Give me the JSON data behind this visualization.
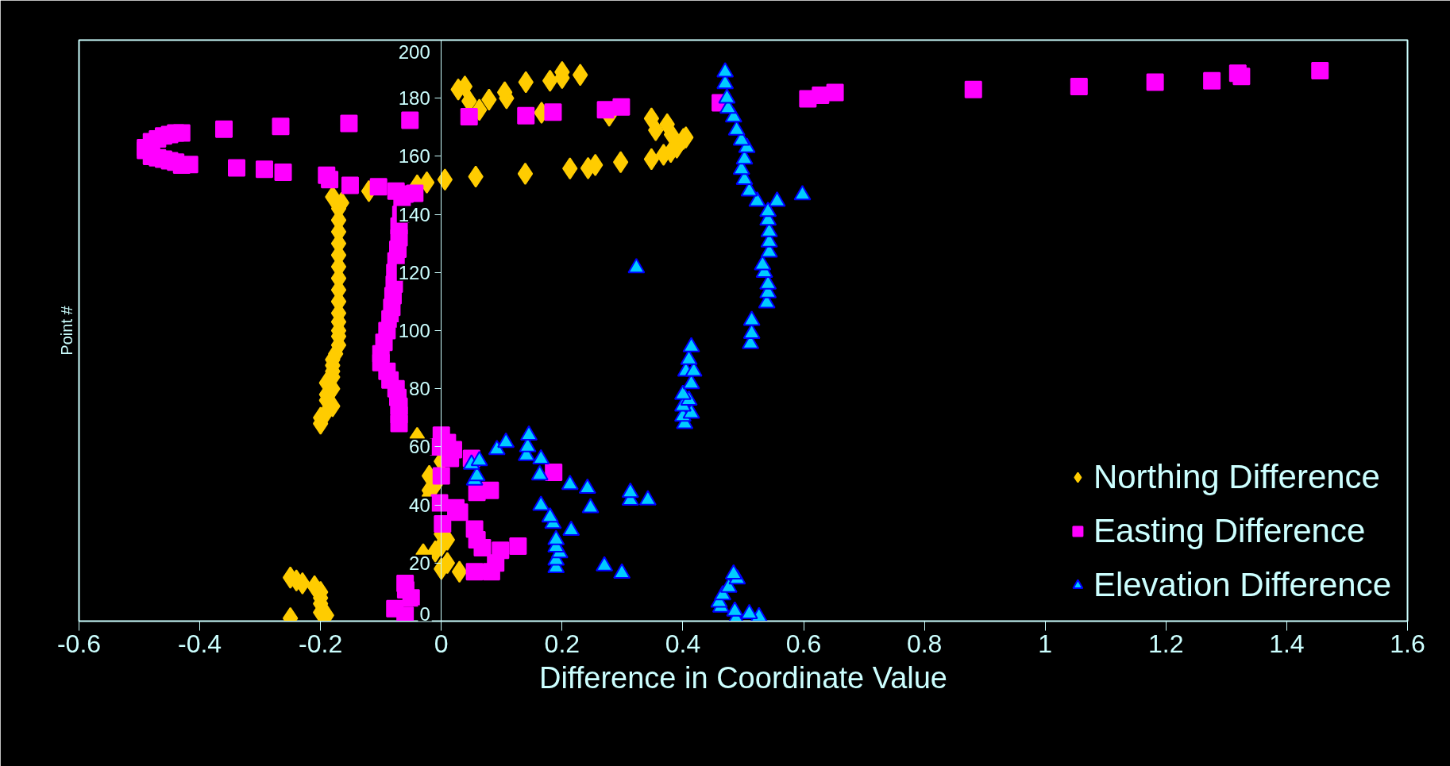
{
  "chart_data": {
    "type": "scatter",
    "xlabel": "Difference in Coordinate Value",
    "ylabel": "Point #",
    "xlim": [
      -0.6,
      1.6
    ],
    "ylim": [
      0,
      200
    ],
    "xticks": [
      -0.6,
      -0.4,
      -0.2,
      0,
      0.2,
      0.4,
      0.6,
      0.8,
      1,
      1.2,
      1.4,
      1.6
    ],
    "yticks": [
      0,
      20,
      40,
      60,
      80,
      100,
      120,
      140,
      160,
      180,
      200
    ],
    "grid": false,
    "legend": "bottom right",
    "series": [
      {
        "name": "Northing Difference",
        "color": "#ffcc00",
        "marker": "diamond",
        "x": [
          -0.25,
          -0.25,
          -0.24,
          -0.23,
          -0.21,
          -0.2,
          -0.2,
          -0.2,
          -0.2,
          -0.19,
          0.03,
          0.0,
          0.01,
          -0.03,
          -0.01,
          0.0,
          0.01,
          0.0,
          -0.02,
          -0.02,
          -0.01,
          -0.02,
          0.0,
          -0.04,
          -0.2,
          -0.2,
          -0.19,
          -0.18,
          -0.19,
          -0.19,
          -0.18,
          -0.19,
          -0.18,
          -0.18,
          -0.18,
          -0.18,
          -0.175,
          -0.17,
          -0.17,
          -0.17,
          -0.17,
          -0.17,
          -0.17,
          -0.17,
          -0.17,
          -0.17,
          -0.17,
          -0.17,
          -0.17,
          -0.17,
          -0.17,
          -0.165,
          -0.18,
          -0.12,
          -0.04,
          -0.024,
          0.006,
          0.057,
          0.139,
          0.213,
          0.243,
          0.255,
          0.297,
          0.348,
          0.368,
          0.38,
          0.39,
          0.401,
          0.405,
          0.381,
          0.355,
          0.374,
          0.348,
          0.278,
          0.166,
          0.063,
          0.046,
          0.079,
          0.108,
          0.105,
          0.028,
          0.039,
          0.14,
          0.18,
          0.2,
          0.23,
          0.2
        ],
        "values": [
          1,
          15,
          14,
          13,
          12,
          10,
          8,
          6,
          3,
          2,
          17,
          18,
          20,
          23,
          24,
          26,
          28,
          30,
          43,
          45,
          47,
          50,
          55,
          63,
          68,
          70,
          72,
          74,
          76,
          78,
          80,
          82,
          84,
          86,
          88,
          90,
          92,
          95,
          98,
          100,
          103,
          106,
          110,
          114,
          118,
          122,
          126,
          130,
          134,
          138,
          142,
          144,
          146,
          148,
          150,
          151,
          152,
          153,
          154,
          155.8,
          155.9,
          157,
          158,
          159,
          160.5,
          161.5,
          163,
          166,
          166.5,
          167.5,
          169,
          171,
          173,
          174,
          175,
          176,
          179,
          179.5,
          180,
          182,
          183,
          184,
          185.5,
          186,
          187,
          188,
          189
        ]
      },
      {
        "name": "Easting Difference",
        "color": "#ff00ff",
        "marker": "square",
        "x": [
          -0.06,
          -0.077,
          -0.05,
          -0.059,
          -0.06,
          0.055,
          0.083,
          0.09,
          0.098,
          0.127,
          0.068,
          0.059,
          0.055,
          0.002,
          0.03,
          0.024,
          -0.003,
          0.059,
          0.081,
          0.0,
          0.186,
          0.015,
          0.05,
          0.02,
          0.01,
          -0.005,
          0.0,
          -0.07,
          -0.07,
          -0.07,
          -0.072,
          -0.075,
          -0.085,
          -0.09,
          -0.1,
          -0.1,
          -0.095,
          -0.09,
          -0.085,
          -0.082,
          -0.08,
          -0.078,
          -0.077,
          -0.075,
          -0.072,
          -0.07,
          -0.07,
          -0.067,
          -0.065,
          -0.06,
          -0.044,
          -0.075,
          -0.104,
          -0.151,
          -0.185,
          -0.19,
          -0.262,
          -0.293,
          -0.339,
          -0.417,
          -0.43,
          -0.44,
          -0.45,
          -0.46,
          -0.47,
          -0.48,
          -0.49,
          -0.49,
          -0.48,
          -0.47,
          -0.46,
          -0.45,
          -0.44,
          -0.43,
          -0.36,
          -0.266,
          -0.153,
          -0.052,
          0.046,
          0.14,
          0.185,
          0.272,
          0.298,
          0.462,
          0.607,
          0.628,
          0.652,
          0.881,
          1.056,
          1.182,
          1.276,
          1.325,
          1.319,
          1.455
        ],
        "values": [
          2,
          4.3,
          8,
          10.8,
          13,
          17,
          17,
          20,
          24.4,
          25.8,
          25.3,
          28,
          31.7,
          33.5,
          37.5,
          39,
          40.7,
          44.3,
          45,
          50,
          51.2,
          56,
          56,
          59,
          61.5,
          60,
          64,
          68,
          71,
          74,
          77,
          80,
          83,
          86,
          89,
          92,
          96,
          100,
          104,
          108,
          112,
          116,
          120,
          124,
          128,
          132,
          136,
          140,
          144,
          147,
          147.3,
          148,
          149.5,
          150,
          152,
          153.5,
          154.5,
          155.5,
          156,
          157.2,
          157,
          158,
          158.5,
          159,
          159.5,
          160,
          162,
          163,
          165,
          166,
          167,
          167.5,
          168,
          168,
          169.3,
          170.3,
          171.3,
          172.4,
          173.6,
          174,
          175.2,
          176,
          177,
          178.4,
          179.8,
          181,
          182,
          183,
          184,
          185.5,
          186,
          187.5,
          188.6,
          189.5
        ]
      },
      {
        "name": "Elevation Difference",
        "color": "#00ccff",
        "marker": "triangle",
        "x": [
          0.488,
          0.526,
          0.51,
          0.486,
          0.463,
          0.46,
          0.466,
          0.476,
          0.49,
          0.484,
          0.299,
          0.27,
          0.19,
          0.19,
          0.196,
          0.19,
          0.19,
          0.215,
          0.185,
          0.18,
          0.165,
          0.247,
          0.342,
          0.313,
          0.313,
          0.242,
          0.213,
          0.163,
          0.055,
          0.059,
          0.05,
          0.063,
          0.165,
          0.141,
          0.092,
          0.143,
          0.107,
          0.145,
          0.403,
          0.4,
          0.414,
          0.4,
          0.41,
          0.4,
          0.414,
          0.405,
          0.418,
          0.41,
          0.414,
          0.512,
          0.514,
          0.514,
          0.539,
          0.541,
          0.541,
          0.535,
          0.532,
          0.323,
          0.543,
          0.543,
          0.543,
          0.541,
          0.541,
          0.523,
          0.556,
          0.598,
          0.51,
          0.502,
          0.497,
          0.502,
          0.506,
          0.497,
          0.489,
          0.484,
          0.475,
          0.473,
          0.47,
          0.47
        ],
        "values": [
          0.8,
          1.5,
          2.5,
          3.4,
          4.8,
          6.5,
          9,
          11.6,
          14.5,
          16.2,
          16.5,
          19,
          18.4,
          21,
          23.5,
          25.5,
          28,
          31.2,
          33.6,
          35.8,
          39.8,
          39,
          41.7,
          41.6,
          44.3,
          45.7,
          47,
          50.3,
          48.5,
          50,
          54,
          55.2,
          55.8,
          57,
          59,
          60,
          61.5,
          64,
          68,
          70.5,
          71.5,
          74,
          76,
          78,
          81.7,
          86,
          86,
          90,
          94.4,
          95.5,
          99,
          103.5,
          109.5,
          113,
          116,
          120,
          122.6,
          121.6,
          127,
          130.5,
          134,
          138,
          141,
          144.5,
          144.5,
          146.7,
          148,
          152,
          155.5,
          159,
          163,
          165.5,
          169,
          173.5,
          176.5,
          180,
          185,
          189
        ]
      }
    ]
  }
}
